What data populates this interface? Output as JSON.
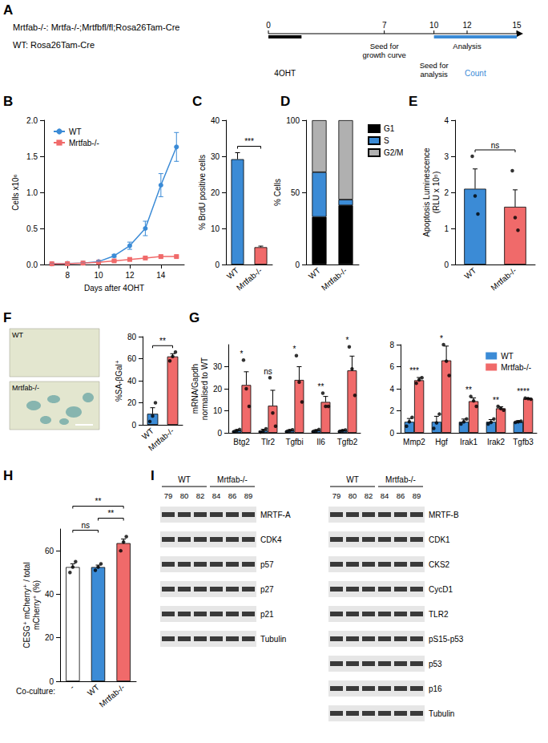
{
  "chart_data": [
    {
      "panel": "B",
      "type": "line",
      "x_label": "Days after 4OHT",
      "y_label": "Cells x10⁶",
      "x": [
        7,
        8,
        9,
        10,
        11,
        12,
        13,
        14,
        15
      ],
      "xlim": [
        6.5,
        15.5
      ],
      "xticks": [
        8,
        10,
        12,
        14
      ],
      "ylim": [
        0,
        2.0
      ],
      "yticks": [
        {
          "value": 0,
          "label": "0.0"
        },
        {
          "value": 0.5,
          "label": "0.5"
        },
        {
          "value": 1.0,
          "label": "1.0"
        },
        {
          "value": 1.5,
          "label": "1.5"
        },
        {
          "value": 2.0,
          "label": "2.0"
        }
      ],
      "legend": "top-left",
      "series": [
        {
          "name": "WT",
          "color": "#3b8bd6",
          "marker": "circle",
          "values": [
            0.01,
            0.015,
            0.02,
            0.04,
            0.12,
            0.26,
            0.5,
            1.1,
            1.63
          ],
          "errors": [
            0,
            0,
            0,
            0.01,
            0.02,
            0.05,
            0.1,
            0.16,
            0.2
          ]
        },
        {
          "name": "Mrtfab-/-",
          "color": "#f06a6a",
          "marker": "square",
          "values": [
            0.01,
            0.012,
            0.02,
            0.03,
            0.05,
            0.07,
            0.09,
            0.11,
            0.11
          ],
          "errors": [
            0,
            0,
            0,
            0,
            0.01,
            0.01,
            0.01,
            0.01,
            0.01
          ]
        }
      ]
    },
    {
      "panel": "C",
      "type": "bar",
      "y_label": "% BrdU positive cells",
      "categories": [
        "WT",
        "Mrtfab-/-"
      ],
      "values": [
        29.2,
        4.8
      ],
      "errors": [
        1.8,
        0.3
      ],
      "colors": [
        "#3b8bd6",
        "#f06a6a"
      ],
      "ylim": [
        0,
        40
      ],
      "yticks": [
        0,
        10,
        20,
        30,
        40
      ],
      "comparisons": [
        {
          "groups": [
            "WT",
            "Mrtfab-/-"
          ],
          "text": "***"
        }
      ]
    },
    {
      "panel": "D",
      "type": "bar",
      "stacked": true,
      "y_label": "% Cells",
      "categories": [
        "WT",
        "Mrtfab-/-"
      ],
      "series": [
        {
          "name": "G1",
          "color": "#000000",
          "values": [
            33,
            41
          ]
        },
        {
          "name": "S",
          "color": "#3b8bd6",
          "values": [
            31,
            4
          ]
        },
        {
          "name": "G2/M",
          "color": "#b0b0b0",
          "values": [
            36,
            55
          ]
        }
      ],
      "ylim": [
        0,
        100
      ],
      "yticks": [
        0,
        50,
        100
      ],
      "legend": "right"
    },
    {
      "panel": "E",
      "type": "bar",
      "y_label": "Apoptosis Luminescence (RLU x 10⁵)",
      "categories": [
        "WT",
        "Mrtfab-/-"
      ],
      "values": [
        2.1,
        1.6
      ],
      "errors": [
        0.55,
        0.47
      ],
      "points": [
        [
          3.0,
          1.9,
          1.4
        ],
        [
          2.6,
          1.3,
          0.95
        ]
      ],
      "colors": [
        "#3b8bd6",
        "#f06a6a"
      ],
      "ylim": [
        0,
        4
      ],
      "yticks": [
        0,
        1,
        2,
        3,
        4
      ],
      "comparisons": [
        {
          "groups": [
            "WT",
            "Mrtfab-/-"
          ],
          "text": "ns"
        }
      ]
    },
    {
      "type": "bar",
      "y_label": "%SA-βGal⁺",
      "categories": [
        "WT",
        "Mrtfab-/-"
      ],
      "values": [
        10,
        62
      ],
      "errors": [
        5.5,
        2.5
      ],
      "points": [
        [
          3,
          8,
          20
        ],
        [
          58,
          62,
          66
        ]
      ],
      "colors": [
        "#3b8bd6",
        "#f06a6a"
      ],
      "ylim": [
        0,
        80
      ],
      "yticks": [
        0,
        20,
        40,
        60,
        80
      ],
      "comparisons": [
        {
          "groups": [
            "WT",
            "Mrtfab-/-"
          ],
          "text": "**"
        }
      ]
    },
    {
      "panel": "G",
      "type": "bar",
      "y_label": "mRNA/Gapdh normalised to WT",
      "categories": [
        "Btg2",
        "Tlr2",
        "Tgfbi",
        "Il6",
        "Tgfb2"
      ],
      "series": [
        {
          "name": "WT",
          "color": "#3b8bd6",
          "values": [
            1,
            1,
            1,
            1,
            1
          ],
          "errors": [
            0.4,
            0.6,
            0.4,
            0.4,
            0.3
          ],
          "points": [
            [
              0.5,
              1.0,
              1.5
            ],
            [
              0.3,
              0.9,
              1.8
            ],
            [
              0.6,
              1.0,
              1.4
            ],
            [
              0.6,
              0.9,
              1.5
            ],
            [
              0.7,
              1.0,
              1.3
            ]
          ]
        },
        {
          "name": "Mrtfab-/-",
          "color": "#f06a6a",
          "values": [
            21.7,
            12.3,
            24,
            14,
            28.3
          ],
          "errors": [
            6,
            7,
            6,
            2.5,
            6.5
          ],
          "points": [
            [
              33,
              20,
              12
            ],
            [
              25,
              9,
              3
            ],
            [
              35,
              23,
              14
            ],
            [
              18,
              12,
              12
            ],
            [
              39,
              29,
              17
            ]
          ]
        }
      ],
      "ylim": [
        0,
        40
      ],
      "yticks": [
        0,
        10,
        20,
        30
      ],
      "significance": [
        "*",
        "ns",
        "*",
        "**",
        "*"
      ]
    },
    {
      "type": "bar",
      "categories": [
        "Mmp2",
        "Hgf",
        "Irak1",
        "Irak2",
        "Tgfb3"
      ],
      "series": [
        {
          "name": "WT",
          "color": "#3b8bd6",
          "values": [
            1,
            1,
            1,
            1,
            1
          ],
          "errors": [
            0.3,
            0.5,
            0.25,
            0.2,
            0.1
          ],
          "points": [
            [
              0.6,
              1.0,
              1.4
            ],
            [
              0.4,
              0.9,
              1.7
            ],
            [
              0.8,
              1.0,
              1.25
            ],
            [
              0.8,
              0.95,
              1.25
            ],
            [
              0.95,
              1.0,
              1.05
            ]
          ]
        },
        {
          "name": "Mrtfab-/-",
          "color": "#f06a6a",
          "values": [
            4.77,
            6.57,
            2.87,
            2.22,
            3.1
          ],
          "errors": [
            0.25,
            1.3,
            0.3,
            0.15,
            0.05
          ],
          "points": [
            [
              4.5,
              4.8,
              5.0
            ],
            [
              8.0,
              6.5,
              5.2
            ],
            [
              3.3,
              2.9,
              2.4
            ],
            [
              2.4,
              2.2,
              2.05
            ],
            [
              3.15,
              3.1,
              3.05
            ]
          ]
        }
      ],
      "ylim": [
        0,
        8
      ],
      "yticks": [
        0,
        2,
        4,
        6,
        8
      ],
      "legend": "top-right",
      "significance": [
        "***",
        "*",
        "**",
        "**",
        "****"
      ]
    },
    {
      "panel": "H",
      "type": "bar",
      "x_label": "Co-culture:",
      "y_label": "CESG⁺ mCherry⁺ / total mCherry⁺ (%)",
      "categories": [
        "-",
        "WT",
        "Mrtfab-/-"
      ],
      "values": [
        52.5,
        52.5,
        63.5
      ],
      "errors": [
        1.5,
        0.9,
        1.9
      ],
      "points": [
        [
          50,
          52.5,
          55
        ],
        [
          51,
          52.5,
          54
        ],
        [
          60,
          64,
          66.5
        ]
      ],
      "colors": [
        "#ffffff",
        "#3b8bd6",
        "#f06a6a"
      ],
      "ylim": [
        0,
        70
      ],
      "yticks": [
        0,
        20,
        40,
        60
      ],
      "comparisons": [
        {
          "groups": [
            "-",
            "WT"
          ],
          "text": "ns"
        },
        {
          "groups": [
            "WT",
            "Mrtfab-/-"
          ],
          "text": "**"
        },
        {
          "groups": [
            "-",
            "Mrtfab-/-"
          ],
          "text": "**"
        }
      ]
    }
  ],
  "panel_a": {
    "panel": "A",
    "genotypes": [
      {
        "name": "Mrtfab-/-:",
        "genotype": "Mrtfa-/-;Mrtfbfl/fl;Rosa26Tam-Cre"
      },
      {
        "name": "WT:",
        "genotype": "Rosa26Tam-Cre"
      }
    ],
    "timeline": {
      "range": [
        0,
        15
      ],
      "ticks": [
        0,
        7,
        10,
        12,
        15
      ],
      "events": [
        {
          "start": 0,
          "end": 2,
          "label": "4OHT",
          "color": "#000000"
        },
        {
          "at": 7,
          "label": "Seed for growth curve"
        },
        {
          "at": 10,
          "label": "Seed for analysis"
        },
        {
          "at": 12,
          "label": "Analysis"
        },
        {
          "start": 10,
          "end": 15,
          "label": "Count",
          "color": "#3b8bd6"
        }
      ]
    }
  },
  "panel_f": {
    "panel": "F",
    "images": [
      "WT",
      "Mrtfab-/-"
    ]
  },
  "panel_i": {
    "panel": "I",
    "groups": [
      {
        "label": "WT",
        "lanes": [
          "79",
          "80",
          "82"
        ]
      },
      {
        "label": "Mrtfab-/-",
        "lanes": [
          "84",
          "86",
          "89"
        ]
      }
    ],
    "blots": [
      [
        "MRTF-A",
        "CDK4",
        "p57",
        "p27",
        "p21",
        "Tubulin"
      ],
      [
        "MRTF-B",
        "CDK1",
        "CKS2",
        "CycD1",
        "TLR2",
        "pS15-p53",
        "p53",
        "p16",
        "Tubulin"
      ]
    ]
  }
}
